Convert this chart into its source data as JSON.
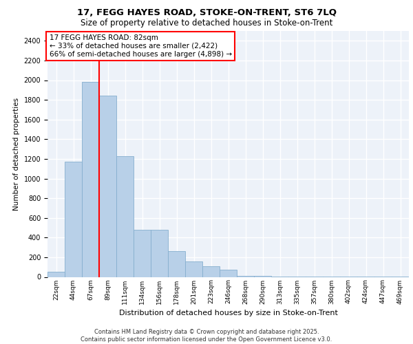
{
  "title_line1": "17, FEGG HAYES ROAD, STOKE-ON-TRENT, ST6 7LQ",
  "title_line2": "Size of property relative to detached houses in Stoke-on-Trent",
  "xlabel": "Distribution of detached houses by size in Stoke-on-Trent",
  "ylabel": "Number of detached properties",
  "categories": [
    "22sqm",
    "44sqm",
    "67sqm",
    "89sqm",
    "111sqm",
    "134sqm",
    "156sqm",
    "178sqm",
    "201sqm",
    "223sqm",
    "246sqm",
    "268sqm",
    "290sqm",
    "313sqm",
    "335sqm",
    "357sqm",
    "380sqm",
    "402sqm",
    "424sqm",
    "447sqm",
    "469sqm"
  ],
  "values": [
    50,
    1170,
    1980,
    1840,
    1230,
    480,
    480,
    265,
    160,
    110,
    70,
    10,
    10,
    5,
    3,
    2,
    1,
    1,
    1,
    1,
    1
  ],
  "bar_color": "#b8d0e8",
  "bar_edgecolor": "#85aece",
  "vline_x_pos": 2.5,
  "vline_color": "red",
  "annotation_title": "17 FEGG HAYES ROAD: 82sqm",
  "annotation_line2": "← 33% of detached houses are smaller (2,422)",
  "annotation_line3": "66% of semi-detached houses are larger (4,898) →",
  "ylim": [
    0,
    2500
  ],
  "yticks": [
    0,
    200,
    400,
    600,
    800,
    1000,
    1200,
    1400,
    1600,
    1800,
    2000,
    2200,
    2400
  ],
  "footer_line1": "Contains HM Land Registry data © Crown copyright and database right 2025.",
  "footer_line2": "Contains public sector information licensed under the Open Government Licence v3.0.",
  "bg_color": "#edf2f9",
  "grid_color": "white",
  "title1_fontsize": 9.5,
  "title2_fontsize": 8.5,
  "xlabel_fontsize": 8,
  "ylabel_fontsize": 7.5,
  "tick_fontsize": 7,
  "xtick_fontsize": 6.5,
  "footer_fontsize": 6,
  "ann_fontsize": 7.5
}
